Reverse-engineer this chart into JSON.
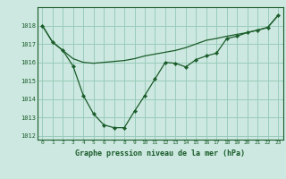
{
  "title": "Graphe pression niveau de la mer (hPa)",
  "background_color": "#cce8e0",
  "grid_color": "#99ccbb",
  "line_color": "#1a5c2a",
  "line1": {
    "x": [
      0,
      1,
      2,
      3,
      4,
      5,
      6,
      7,
      8,
      9,
      10,
      11,
      12,
      13,
      14,
      15,
      16,
      17,
      18,
      19,
      20,
      21,
      22,
      23
    ],
    "y": [
      1018.0,
      1017.1,
      1016.65,
      1016.2,
      1016.0,
      1015.95,
      1016.0,
      1016.05,
      1016.1,
      1016.2,
      1016.35,
      1016.45,
      1016.55,
      1016.65,
      1016.8,
      1017.0,
      1017.2,
      1017.3,
      1017.42,
      1017.52,
      1017.62,
      1017.75,
      1017.9,
      1018.55
    ]
  },
  "line2": {
    "x": [
      0,
      1,
      2,
      3,
      4,
      5,
      6,
      7,
      8,
      9,
      10,
      11,
      12,
      13,
      14,
      15,
      16,
      17,
      18,
      19,
      20,
      21,
      22,
      23
    ],
    "y": [
      1018.0,
      1017.1,
      1016.65,
      1015.8,
      1014.2,
      1013.2,
      1012.6,
      1012.45,
      1012.45,
      1013.35,
      1014.2,
      1015.1,
      1016.0,
      1015.95,
      1015.75,
      1016.15,
      1016.35,
      1016.5,
      1017.3,
      1017.42,
      1017.62,
      1017.75,
      1017.9,
      1018.55
    ]
  },
  "ylim": [
    1011.8,
    1019.0
  ],
  "yticks": [
    1012,
    1013,
    1014,
    1015,
    1016,
    1017,
    1018
  ],
  "xlim": [
    -0.5,
    23.5
  ],
  "xticks": [
    0,
    1,
    2,
    3,
    4,
    5,
    6,
    7,
    8,
    9,
    10,
    11,
    12,
    13,
    14,
    15,
    16,
    17,
    18,
    19,
    20,
    21,
    22,
    23
  ]
}
